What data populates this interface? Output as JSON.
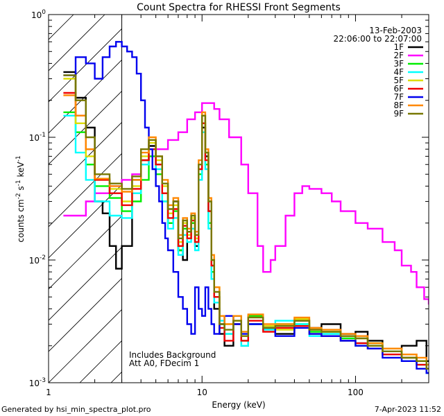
{
  "chart_data": {
    "type": "line",
    "title": "Count Spectra for RHESSI Front Segments",
    "xlabel": "Energy (keV)",
    "ylabel_parts": {
      "a": "counts cm",
      "b": "-2",
      "c": " s",
      "d": "-1",
      "e": " keV",
      "f": "-1"
    },
    "xscale": "log",
    "yscale": "log",
    "xlim": [
      1,
      300
    ],
    "ylim": [
      0.001,
      1
    ],
    "x_ticks": [
      {
        "v": 1,
        "label": "1"
      },
      {
        "v": 10,
        "label": "10"
      },
      {
        "v": 100,
        "label": "100"
      }
    ],
    "y_ticks": [
      {
        "v": 0.001,
        "base": "10",
        "exp": "-3"
      },
      {
        "v": 0.01,
        "base": "10",
        "exp": "-2"
      },
      {
        "v": 0.1,
        "base": "10",
        "exp": "-1"
      },
      {
        "v": 1,
        "base": "10",
        "exp": "0"
      }
    ],
    "date": "13-Feb-2003",
    "time_range": "22:06:00 to 22:07:00",
    "annotations": [
      "Includes Background",
      "Att A0, FDecim 1"
    ],
    "shaded_region_keV": [
      1,
      3
    ],
    "series": [
      {
        "name": "1F",
        "color": "#000000",
        "x": [
          1.25,
          1.5,
          1.75,
          2,
          2.25,
          2.5,
          2.75,
          3,
          3.5,
          4,
          4.5,
          5,
          5.5,
          6,
          6.5,
          7,
          7.5,
          8,
          8.5,
          9,
          9.5,
          10,
          10.5,
          11,
          11.5,
          12,
          13,
          14,
          16,
          18,
          20,
          25,
          30,
          40,
          50,
          60,
          80,
          100,
          120,
          150,
          200,
          250,
          290
        ],
        "values": [
          0.34,
          0.21,
          0.12,
          0.03,
          0.024,
          0.013,
          0.0085,
          0.013,
          0.045,
          0.065,
          0.085,
          0.06,
          0.035,
          0.02,
          0.03,
          0.012,
          0.01,
          0.017,
          0.02,
          0.013,
          0.06,
          0.12,
          0.07,
          0.025,
          0.009,
          0.004,
          0.0025,
          0.002,
          0.0035,
          0.002,
          0.003,
          0.0028,
          0.0025,
          0.0032,
          0.0028,
          0.003,
          0.0025,
          0.0026,
          0.0022,
          0.0019,
          0.002,
          0.0022,
          0.0015
        ]
      },
      {
        "name": "2F",
        "color": "#ff00ff",
        "x": [
          1.25,
          1.5,
          1.75,
          2,
          2.5,
          3,
          3.5,
          4,
          4.5,
          5,
          6,
          7,
          8,
          9,
          10,
          11,
          12,
          13,
          15,
          18,
          20,
          23,
          25,
          28,
          30,
          35,
          40,
          45,
          50,
          60,
          70,
          80,
          100,
          120,
          150,
          180,
          200,
          230,
          250,
          280,
          300
        ],
        "values": [
          0.023,
          0.023,
          0.03,
          0.035,
          0.04,
          0.045,
          0.05,
          0.06,
          0.07,
          0.08,
          0.095,
          0.11,
          0.14,
          0.16,
          0.19,
          0.19,
          0.17,
          0.14,
          0.1,
          0.06,
          0.035,
          0.013,
          0.008,
          0.01,
          0.013,
          0.023,
          0.035,
          0.04,
          0.038,
          0.035,
          0.03,
          0.025,
          0.02,
          0.018,
          0.014,
          0.012,
          0.009,
          0.008,
          0.006,
          0.0048,
          0.0044
        ]
      },
      {
        "name": "3F",
        "color": "#00ee00",
        "x": [
          1.25,
          1.5,
          1.75,
          2,
          2.5,
          3,
          3.5,
          4,
          4.5,
          5,
          5.5,
          6,
          6.5,
          7,
          7.5,
          8,
          8.5,
          9,
          9.5,
          10,
          10.5,
          11,
          11.5,
          12,
          13,
          14,
          16,
          18,
          20,
          25,
          30,
          40,
          50,
          60,
          80,
          100,
          120,
          150,
          200,
          250,
          290
        ],
        "values": [
          0.16,
          0.11,
          0.06,
          0.04,
          0.032,
          0.025,
          0.03,
          0.045,
          0.07,
          0.05,
          0.03,
          0.02,
          0.025,
          0.012,
          0.018,
          0.015,
          0.02,
          0.014,
          0.05,
          0.13,
          0.06,
          0.02,
          0.008,
          0.005,
          0.003,
          0.0025,
          0.003,
          0.0022,
          0.0035,
          0.0028,
          0.003,
          0.003,
          0.0026,
          0.0025,
          0.0023,
          0.002,
          0.0021,
          0.0018,
          0.0016,
          0.0015,
          0.0013
        ]
      },
      {
        "name": "4F",
        "color": "#00ffff",
        "x": [
          1.25,
          1.5,
          1.75,
          2,
          2.5,
          3,
          3.5,
          4,
          4.5,
          5,
          5.5,
          6,
          6.5,
          7,
          7.5,
          8,
          8.5,
          9,
          9.5,
          10,
          10.5,
          11,
          11.5,
          12,
          13,
          14,
          16,
          18,
          20,
          25,
          30,
          40,
          50,
          60,
          80,
          100,
          120,
          150,
          200,
          250,
          290
        ],
        "values": [
          0.15,
          0.075,
          0.045,
          0.03,
          0.023,
          0.022,
          0.035,
          0.06,
          0.08,
          0.055,
          0.03,
          0.018,
          0.022,
          0.011,
          0.016,
          0.014,
          0.018,
          0.012,
          0.045,
          0.11,
          0.055,
          0.018,
          0.007,
          0.0045,
          0.0032,
          0.0025,
          0.0035,
          0.002,
          0.003,
          0.0027,
          0.0032,
          0.003,
          0.0024,
          0.0025,
          0.0022,
          0.0021,
          0.0019,
          0.0017,
          0.0015,
          0.0014,
          0.0012
        ]
      },
      {
        "name": "5F",
        "color": "#dddd00",
        "x": [
          1.25,
          1.5,
          1.75,
          2,
          2.5,
          3,
          3.5,
          4,
          4.5,
          5,
          5.5,
          6,
          6.5,
          7,
          7.5,
          8,
          8.5,
          9,
          9.5,
          10,
          10.5,
          11,
          11.5,
          12,
          13,
          14,
          16,
          18,
          20,
          25,
          30,
          40,
          50,
          60,
          80,
          100,
          120,
          150,
          200,
          250,
          290
        ],
        "values": [
          0.3,
          0.13,
          0.07,
          0.045,
          0.038,
          0.03,
          0.04,
          0.07,
          0.09,
          0.065,
          0.04,
          0.024,
          0.028,
          0.014,
          0.02,
          0.016,
          0.022,
          0.015,
          0.06,
          0.15,
          0.075,
          0.03,
          0.01,
          0.006,
          0.0035,
          0.003,
          0.0032,
          0.0024,
          0.0034,
          0.0029,
          0.0027,
          0.0033,
          0.0027,
          0.0026,
          0.0024,
          0.0023,
          0.002,
          0.0019,
          0.0017,
          0.0015,
          0.0014
        ]
      },
      {
        "name": "6F",
        "color": "#ee0000",
        "x": [
          1.25,
          1.5,
          1.75,
          2,
          2.5,
          3,
          3.5,
          4,
          4.5,
          5,
          5.5,
          6,
          6.5,
          7,
          7.5,
          8,
          8.5,
          9,
          9.5,
          10,
          10.5,
          11,
          11.5,
          12,
          13,
          14,
          16,
          18,
          20,
          25,
          30,
          40,
          50,
          60,
          80,
          100,
          120,
          150,
          200,
          250,
          290
        ],
        "values": [
          0.23,
          0.15,
          0.08,
          0.045,
          0.035,
          0.028,
          0.038,
          0.065,
          0.08,
          0.06,
          0.035,
          0.022,
          0.026,
          0.013,
          0.019,
          0.015,
          0.021,
          0.014,
          0.055,
          0.13,
          0.065,
          0.025,
          0.009,
          0.005,
          0.0028,
          0.0022,
          0.003,
          0.0022,
          0.0032,
          0.0026,
          0.0028,
          0.0029,
          0.0025,
          0.0024,
          0.0022,
          0.0021,
          0.0019,
          0.0017,
          0.0016,
          0.0014,
          0.0013
        ]
      },
      {
        "name": "7F",
        "color": "#0000ee",
        "x": [
          1.25,
          1.5,
          1.75,
          2,
          2.25,
          2.5,
          2.75,
          3,
          3.25,
          3.5,
          3.75,
          4,
          4.25,
          4.5,
          4.75,
          5,
          5.25,
          5.5,
          5.75,
          6,
          6.5,
          7,
          7.5,
          8,
          8.5,
          9,
          9.5,
          10,
          10.5,
          11,
          11.5,
          12,
          13,
          14,
          16,
          18,
          20,
          25,
          30,
          40,
          50,
          60,
          80,
          100,
          120,
          150,
          200,
          250,
          290
        ],
        "values": [
          0.32,
          0.45,
          0.4,
          0.3,
          0.45,
          0.55,
          0.6,
          0.55,
          0.5,
          0.45,
          0.33,
          0.2,
          0.12,
          0.08,
          0.055,
          0.04,
          0.03,
          0.02,
          0.015,
          0.012,
          0.008,
          0.005,
          0.004,
          0.003,
          0.0025,
          0.006,
          0.004,
          0.0035,
          0.006,
          0.004,
          0.003,
          0.0025,
          0.003,
          0.0035,
          0.003,
          0.0025,
          0.003,
          0.0028,
          0.0024,
          0.0028,
          0.0025,
          0.0024,
          0.0022,
          0.002,
          0.0019,
          0.0016,
          0.0015,
          0.0013,
          0.0012
        ]
      },
      {
        "name": "8F",
        "color": "#ff8800",
        "x": [
          1.25,
          1.5,
          1.75,
          2,
          2.5,
          3,
          3.5,
          4,
          4.5,
          5,
          5.5,
          6,
          6.5,
          7,
          7.5,
          8,
          8.5,
          9,
          9.5,
          10,
          10.5,
          11,
          11.5,
          12,
          13,
          14,
          16,
          18,
          20,
          25,
          30,
          40,
          50,
          60,
          80,
          100,
          120,
          150,
          200,
          250,
          290
        ],
        "values": [
          0.22,
          0.15,
          0.08,
          0.046,
          0.04,
          0.036,
          0.045,
          0.075,
          0.1,
          0.07,
          0.045,
          0.028,
          0.032,
          0.016,
          0.022,
          0.018,
          0.024,
          0.017,
          0.065,
          0.16,
          0.08,
          0.032,
          0.011,
          0.006,
          0.0035,
          0.003,
          0.0035,
          0.0026,
          0.0036,
          0.003,
          0.003,
          0.0034,
          0.0028,
          0.0027,
          0.0025,
          0.0024,
          0.0021,
          0.0019,
          0.0017,
          0.0016,
          0.0014
        ]
      },
      {
        "name": "9F",
        "color": "#777700",
        "x": [
          1.25,
          1.5,
          1.75,
          2,
          2.5,
          3,
          3.5,
          4,
          4.5,
          5,
          5.5,
          6,
          6.5,
          7,
          7.5,
          8,
          8.5,
          9,
          9.5,
          10,
          10.5,
          11,
          11.5,
          12,
          13,
          14,
          16,
          18,
          20,
          25,
          30,
          40,
          50,
          60,
          80,
          100,
          120,
          150,
          200,
          250,
          290
        ],
        "values": [
          0.32,
          0.2,
          0.1,
          0.05,
          0.042,
          0.038,
          0.048,
          0.08,
          0.095,
          0.07,
          0.042,
          0.026,
          0.03,
          0.015,
          0.021,
          0.017,
          0.023,
          0.016,
          0.06,
          0.15,
          0.075,
          0.03,
          0.01,
          0.0055,
          0.003,
          0.0027,
          0.0032,
          0.0024,
          0.0034,
          0.0028,
          0.0029,
          0.0032,
          0.0027,
          0.0026,
          0.0024,
          0.0023,
          0.002,
          0.0018,
          0.0016,
          0.0015,
          0.0013
        ]
      }
    ]
  },
  "footer": {
    "generated_by": "Generated by hsi_min_spectra_plot.pro",
    "timestamp": "7-Apr-2023 11:52"
  }
}
